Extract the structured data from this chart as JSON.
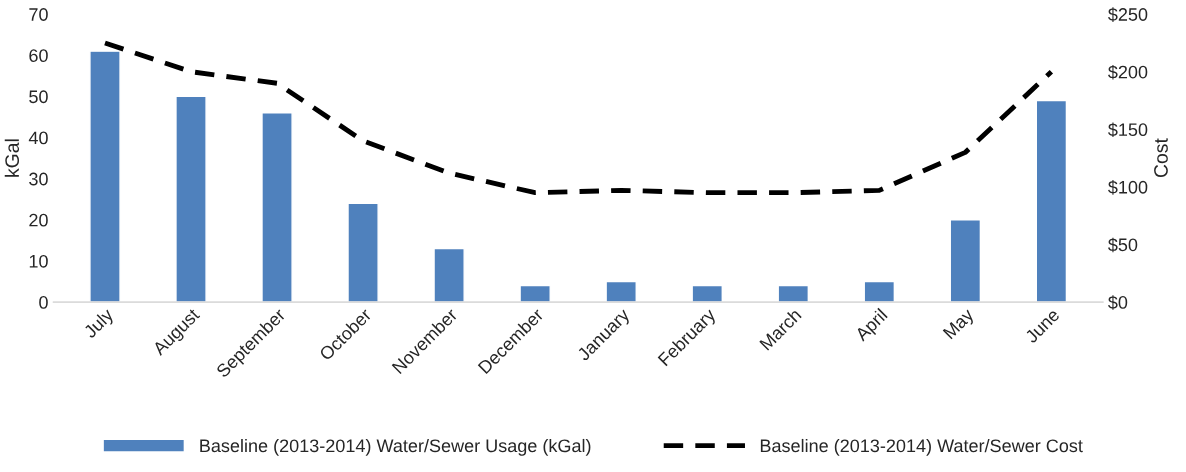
{
  "chart_data": {
    "type": "bar",
    "categories": [
      "July",
      "August",
      "September",
      "October",
      "November",
      "December",
      "January",
      "February",
      "March",
      "April",
      "May",
      "June"
    ],
    "series": [
      {
        "name": "Baseline (2013-2014) Water/Sewer Usage (kGal)",
        "color": "#4f81bd",
        "values": [
          61,
          50,
          46,
          24,
          13,
          4,
          5,
          4,
          4,
          5,
          20,
          49
        ]
      },
      {
        "name": "Baseline (2013-2014) Water/Sewer Cost",
        "type": "line",
        "axis": "y2",
        "color": "#000000",
        "line_style": "dashed",
        "values": [
          225,
          200,
          190,
          140,
          112,
          95,
          97,
          95,
          95,
          97,
          130,
          200
        ]
      }
    ],
    "ylabel": "kGal",
    "y2label": "Cost",
    "ylim": [
      0,
      70
    ],
    "yticks": [
      0,
      10,
      20,
      30,
      40,
      50,
      60,
      70
    ],
    "y2lim": [
      0,
      250
    ],
    "y2ticks": [
      {
        "value": 0,
        "label": "$0"
      },
      {
        "value": 50,
        "label": "$50"
      },
      {
        "value": 100,
        "label": "$100"
      },
      {
        "value": 150,
        "label": "$150"
      },
      {
        "value": 200,
        "label": "$200"
      },
      {
        "value": 250,
        "label": "$250"
      }
    ],
    "grid": false,
    "legend": "bottom"
  }
}
